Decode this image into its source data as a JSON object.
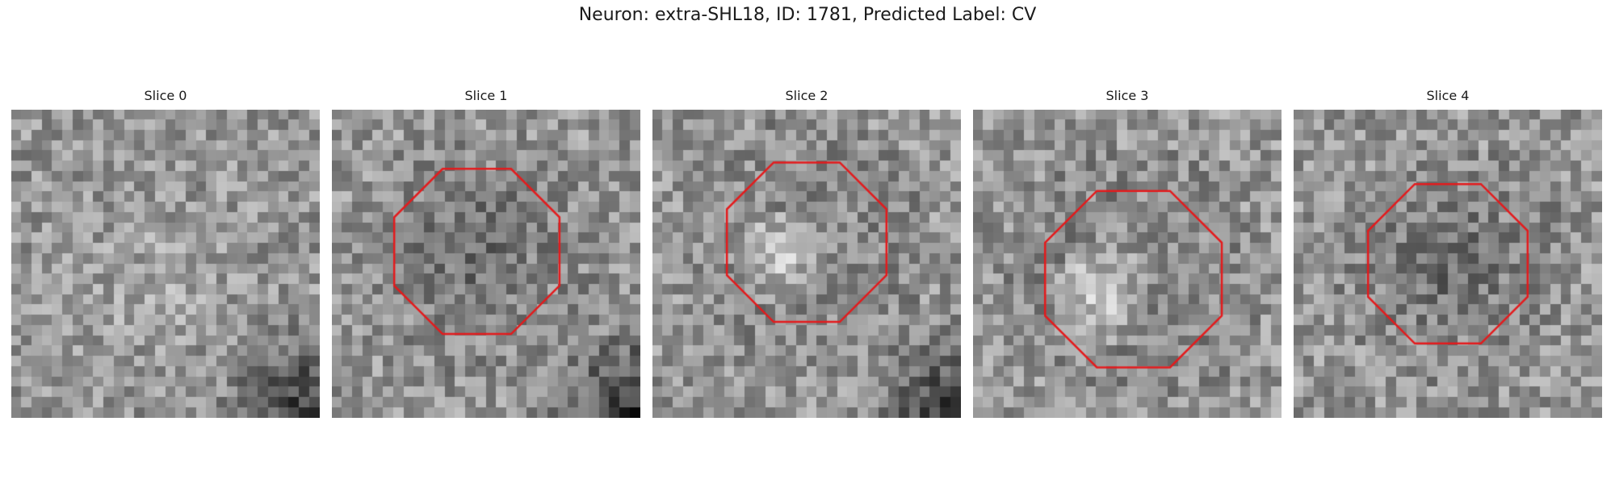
{
  "title": "Neuron: extra-SHL18, ID: 1781, Predicted Label: CV",
  "figure": {
    "colormap": "gray",
    "roi_color": "#e41a1c",
    "background": "#ffffff"
  },
  "panels": [
    {
      "title": "Slice 0",
      "seed": 11,
      "has_roi": false,
      "roi_shift": [
        0,
        0
      ],
      "roi_radius": 0.3,
      "interior": "bright-noise",
      "corner_dark": "bottom-right"
    },
    {
      "title": "Slice 1",
      "seed": 23,
      "has_roi": true,
      "roi_shift": [
        -0.03,
        -0.04
      ],
      "roi_radius": 0.29,
      "interior": "dark",
      "corner_dark": "bottom-right"
    },
    {
      "title": "Slice 2",
      "seed": 37,
      "has_roi": true,
      "roi_shift": [
        0.0,
        -0.07
      ],
      "roi_radius": 0.28,
      "interior": "bright-left",
      "corner_dark": "bottom-right"
    },
    {
      "title": "Slice 3",
      "seed": 51,
      "has_roi": true,
      "roi_shift": [
        0.02,
        0.05
      ],
      "roi_radius": 0.31,
      "interior": "bright-left",
      "corner_dark": "none"
    },
    {
      "title": "Slice 4",
      "seed": 67,
      "has_roi": true,
      "roi_shift": [
        0.0,
        0.0
      ],
      "roi_radius": 0.28,
      "interior": "dark",
      "corner_dark": "none"
    }
  ]
}
